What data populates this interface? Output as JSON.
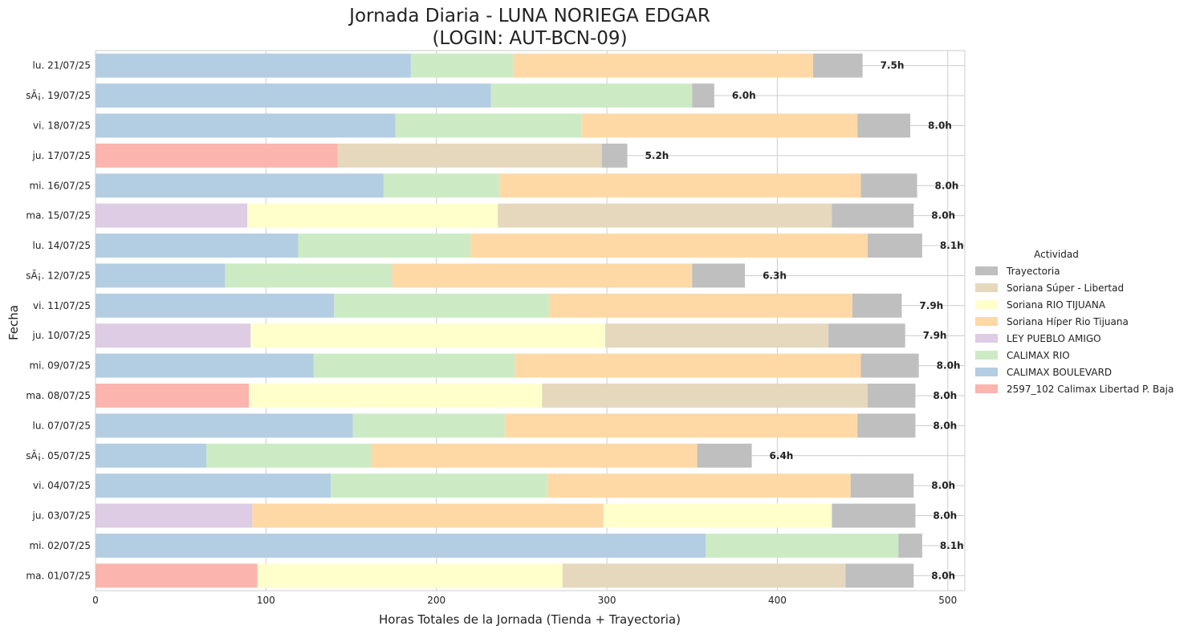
{
  "chart_data": {
    "type": "bar",
    "orientation": "horizontal",
    "stacked": true,
    "title": "Jornada Diaria - LUNA NORIEGA EDGAR",
    "subtitle": "(LOGIN: AUT-BCN-09)",
    "xlabel": "Horas Totales de la Jornada (Tienda + Trayectoria)",
    "ylabel": "Fecha",
    "xlim": [
      0,
      510
    ],
    "xticks": [
      0,
      100,
      200,
      300,
      400,
      500
    ],
    "grid": true,
    "legend": {
      "title": "Actividad",
      "placement": "right"
    },
    "categories": [
      "lu. 21/07/25",
      "sÃ¡. 19/07/25",
      "vi. 18/07/25",
      "ju. 17/07/25",
      "mi. 16/07/25",
      "ma. 15/07/25",
      "lu. 14/07/25",
      "sÃ¡. 12/07/25",
      "vi. 11/07/25",
      "ju. 10/07/25",
      "mi. 09/07/25",
      "ma. 08/07/25",
      "lu. 07/07/25",
      "sÃ¡. 05/07/25",
      "vi. 04/07/25",
      "ju. 03/07/25",
      "mi. 02/07/25",
      "ma. 01/07/25"
    ],
    "totals_labels": [
      "7.5h",
      "6.0h",
      "8.0h",
      "5.2h",
      "8.0h",
      "8.0h",
      "8.1h",
      "6.3h",
      "7.9h",
      "7.9h",
      "8.0h",
      "8.0h",
      "8.0h",
      "6.4h",
      "8.0h",
      "8.0h",
      "8.1h",
      "8.0h"
    ],
    "series": [
      {
        "name": "Trayectoria",
        "color": "#bfbfbf"
      },
      {
        "name": "Soriana Súper - Libertad",
        "color": "#e5d8bd"
      },
      {
        "name": "Soriana RIO TIJUANA",
        "color": "#ffffcc"
      },
      {
        "name": "Soriana Híper Rio Tijuana",
        "color": "#fed9a6"
      },
      {
        "name": "LEY PUEBLO AMIGO",
        "color": "#decbe4"
      },
      {
        "name": "CALIMAX RIO",
        "color": "#ccebc5"
      },
      {
        "name": "CALIMAX BOULEVARD",
        "color": "#b3cde3"
      },
      {
        "name": "2597_102  Calimax Libertad P. Baja",
        "color": "#fbb4ae"
      }
    ],
    "segments": [
      [
        [
          "CALIMAX BOULEVARD",
          185
        ],
        [
          "CALIMAX RIO",
          60
        ],
        [
          "Soriana Híper Rio Tijuana",
          176
        ],
        [
          "Trayectoria",
          29
        ]
      ],
      [
        [
          "CALIMAX BOULEVARD",
          232
        ],
        [
          "CALIMAX RIO",
          118
        ],
        [
          "Trayectoria",
          13
        ]
      ],
      [
        [
          "CALIMAX BOULEVARD",
          176
        ],
        [
          "CALIMAX RIO",
          109
        ],
        [
          "Soriana Híper Rio Tijuana",
          162
        ],
        [
          "Trayectoria",
          31
        ]
      ],
      [
        [
          "2597_102  Calimax Libertad P. Baja",
          142
        ],
        [
          "Soriana Súper - Libertad",
          155
        ],
        [
          "Trayectoria",
          15
        ]
      ],
      [
        [
          "CALIMAX BOULEVARD",
          169
        ],
        [
          "CALIMAX RIO",
          68
        ],
        [
          "Soriana Híper Rio Tijuana",
          212
        ],
        [
          "Trayectoria",
          33
        ]
      ],
      [
        [
          "LEY PUEBLO AMIGO",
          89
        ],
        [
          "Soriana RIO TIJUANA",
          147
        ],
        [
          "Soriana Súper - Libertad",
          196
        ],
        [
          "Trayectoria",
          48
        ]
      ],
      [
        [
          "CALIMAX BOULEVARD",
          119
        ],
        [
          "CALIMAX RIO",
          101
        ],
        [
          "Soriana Híper Rio Tijuana",
          233
        ],
        [
          "Trayectoria",
          32
        ]
      ],
      [
        [
          "CALIMAX BOULEVARD",
          76
        ],
        [
          "CALIMAX RIO",
          98
        ],
        [
          "Soriana Híper Rio Tijuana",
          176
        ],
        [
          "Trayectoria",
          31
        ]
      ],
      [
        [
          "CALIMAX BOULEVARD",
          140
        ],
        [
          "CALIMAX RIO",
          126
        ],
        [
          "Soriana Híper Rio Tijuana",
          178
        ],
        [
          "Trayectoria",
          29
        ]
      ],
      [
        [
          "LEY PUEBLO AMIGO",
          91
        ],
        [
          "Soriana RIO TIJUANA",
          208
        ],
        [
          "Soriana Súper - Libertad",
          131
        ],
        [
          "Trayectoria",
          45
        ]
      ],
      [
        [
          "CALIMAX BOULEVARD",
          128
        ],
        [
          "CALIMAX RIO",
          118
        ],
        [
          "Soriana Híper Rio Tijuana",
          203
        ],
        [
          "Trayectoria",
          34
        ]
      ],
      [
        [
          "2597_102  Calimax Libertad P. Baja",
          90
        ],
        [
          "Soriana RIO TIJUANA",
          172
        ],
        [
          "Soriana Súper - Libertad",
          191
        ],
        [
          "Trayectoria",
          28
        ]
      ],
      [
        [
          "CALIMAX BOULEVARD",
          151
        ],
        [
          "CALIMAX RIO",
          89
        ],
        [
          "Soriana Híper Rio Tijuana",
          207
        ],
        [
          "Trayectoria",
          34
        ]
      ],
      [
        [
          "CALIMAX BOULEVARD",
          65
        ],
        [
          "CALIMAX RIO",
          97
        ],
        [
          "Soriana Híper Rio Tijuana",
          191
        ],
        [
          "Trayectoria",
          32
        ]
      ],
      [
        [
          "CALIMAX BOULEVARD",
          138
        ],
        [
          "CALIMAX RIO",
          127
        ],
        [
          "Soriana Híper Rio Tijuana",
          178
        ],
        [
          "Trayectoria",
          37
        ]
      ],
      [
        [
          "LEY PUEBLO AMIGO",
          92
        ],
        [
          "Soriana Híper Rio Tijuana",
          206
        ],
        [
          "Soriana RIO TIJUANA",
          134
        ],
        [
          "Trayectoria",
          49
        ]
      ],
      [
        [
          "CALIMAX BOULEVARD",
          358
        ],
        [
          "CALIMAX RIO",
          113
        ],
        [
          "Trayectoria",
          14
        ]
      ],
      [
        [
          "2597_102  Calimax Libertad P. Baja",
          95
        ],
        [
          "Soriana RIO TIJUANA",
          179
        ],
        [
          "Soriana Súper - Libertad",
          166
        ],
        [
          "Trayectoria",
          40
        ]
      ]
    ]
  }
}
